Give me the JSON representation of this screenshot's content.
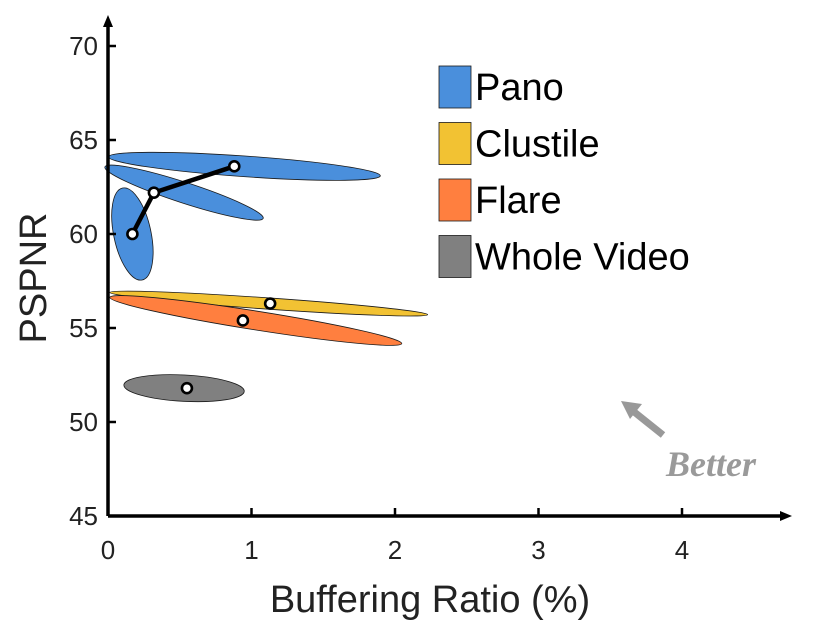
{
  "chart_data": {
    "type": "scatter",
    "title": "",
    "xlabel": "Buffering Ratio (%)",
    "ylabel": "PSPNR",
    "xlim": [
      0,
      4.7
    ],
    "ylim": [
      45,
      71
    ],
    "xticks": [
      0,
      1,
      2,
      3,
      4
    ],
    "yticks": [
      45,
      50,
      55,
      60,
      65,
      70
    ],
    "legend_position": "top-right",
    "annotation": "Better",
    "series": [
      {
        "name": "Pano",
        "color": "#4a8fdc",
        "points": [
          {
            "x": 0.17,
            "y": 60.0
          },
          {
            "x": 0.32,
            "y": 62.2
          },
          {
            "x": 0.88,
            "y": 63.6
          }
        ],
        "connected": true,
        "ellipses": [
          {
            "cx": 0.95,
            "cy": 63.6,
            "rx": 0.95,
            "ry": 0.55,
            "angle": 4
          },
          {
            "cx": 0.53,
            "cy": 62.2,
            "rx": 0.58,
            "ry": 0.55,
            "angle": 18
          },
          {
            "cx": 0.17,
            "cy": 60.0,
            "rx": 0.13,
            "ry": 2.5,
            "angle": -12
          }
        ]
      },
      {
        "name": "Clustile",
        "color": "#f2c233",
        "points": [
          {
            "x": 1.13,
            "y": 56.3
          }
        ],
        "ellipses": [
          {
            "cx": 1.12,
            "cy": 56.3,
            "rx": 1.11,
            "ry": 0.3,
            "angle": 4
          }
        ]
      },
      {
        "name": "Flare",
        "color": "#ff7f3f",
        "points": [
          {
            "x": 0.94,
            "y": 55.4
          }
        ],
        "ellipses": [
          {
            "cx": 1.03,
            "cy": 55.4,
            "rx": 1.03,
            "ry": 0.5,
            "angle": 9
          }
        ]
      },
      {
        "name": "Whole Video",
        "color": "#808080",
        "points": [
          {
            "x": 0.55,
            "y": 51.8
          }
        ],
        "ellipses": [
          {
            "cx": 0.53,
            "cy": 51.8,
            "rx": 0.42,
            "ry": 0.7,
            "angle": 3
          }
        ]
      }
    ]
  }
}
